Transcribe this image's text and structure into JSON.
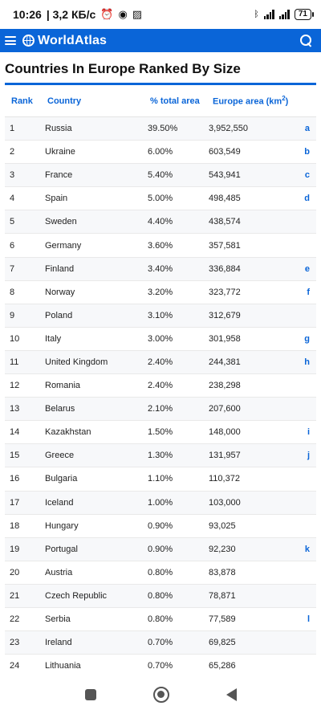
{
  "status": {
    "time": "10:26",
    "speed": "| 3,2 КБ/с",
    "battery": "71"
  },
  "app": {
    "brand": "WorldAtlas"
  },
  "page": {
    "title": "Countries In Europe Ranked By Size"
  },
  "table": {
    "headers": {
      "rank": "Rank",
      "country": "Country",
      "pct": "% total area",
      "area": "Europe area (km",
      "area_sup": "2",
      "area_close": ")"
    },
    "rows": [
      {
        "rank": "1",
        "country": "Russia",
        "pct": "39.50%",
        "area": "3,952,550",
        "link": "a"
      },
      {
        "rank": "2",
        "country": "Ukraine",
        "pct": "6.00%",
        "area": "603,549",
        "link": "b"
      },
      {
        "rank": "3",
        "country": "France",
        "pct": "5.40%",
        "area": "543,941",
        "link": "c"
      },
      {
        "rank": "4",
        "country": "Spain",
        "pct": "5.00%",
        "area": "498,485",
        "link": "d"
      },
      {
        "rank": "5",
        "country": "Sweden",
        "pct": "4.40%",
        "area": "438,574",
        "link": ""
      },
      {
        "rank": "6",
        "country": "Germany",
        "pct": "3.60%",
        "area": "357,581",
        "link": ""
      },
      {
        "rank": "7",
        "country": "Finland",
        "pct": "3.40%",
        "area": "336,884",
        "link": "e"
      },
      {
        "rank": "8",
        "country": "Norway",
        "pct": "3.20%",
        "area": "323,772",
        "link": "f"
      },
      {
        "rank": "9",
        "country": "Poland",
        "pct": "3.10%",
        "area": "312,679",
        "link": ""
      },
      {
        "rank": "10",
        "country": "Italy",
        "pct": "3.00%",
        "area": "301,958",
        "link": "g"
      },
      {
        "rank": "11",
        "country": "United Kingdom",
        "pct": "2.40%",
        "area": "244,381",
        "link": "h"
      },
      {
        "rank": "12",
        "country": "Romania",
        "pct": "2.40%",
        "area": "238,298",
        "link": ""
      },
      {
        "rank": "13",
        "country": "Belarus",
        "pct": "2.10%",
        "area": "207,600",
        "link": ""
      },
      {
        "rank": "14",
        "country": "Kazakhstan",
        "pct": "1.50%",
        "area": "148,000",
        "link": "i"
      },
      {
        "rank": "15",
        "country": "Greece",
        "pct": "1.30%",
        "area": "131,957",
        "link": "j"
      },
      {
        "rank": "16",
        "country": "Bulgaria",
        "pct": "1.10%",
        "area": "110,372",
        "link": ""
      },
      {
        "rank": "17",
        "country": "Iceland",
        "pct": "1.00%",
        "area": "103,000",
        "link": ""
      },
      {
        "rank": "18",
        "country": "Hungary",
        "pct": "0.90%",
        "area": "93,025",
        "link": ""
      },
      {
        "rank": "19",
        "country": "Portugal",
        "pct": "0.90%",
        "area": "92,230",
        "link": "k"
      },
      {
        "rank": "20",
        "country": "Austria",
        "pct": "0.80%",
        "area": "83,878",
        "link": ""
      },
      {
        "rank": "21",
        "country": "Czech Republic",
        "pct": "0.80%",
        "area": "78,871",
        "link": ""
      },
      {
        "rank": "22",
        "country": "Serbia",
        "pct": "0.80%",
        "area": "77,589",
        "link": "l"
      },
      {
        "rank": "23",
        "country": "Ireland",
        "pct": "0.70%",
        "area": "69,825",
        "link": ""
      },
      {
        "rank": "24",
        "country": "Lithuania",
        "pct": "0.70%",
        "area": "65,286",
        "link": ""
      }
    ]
  },
  "colors": {
    "brand": "#0a65d8"
  }
}
